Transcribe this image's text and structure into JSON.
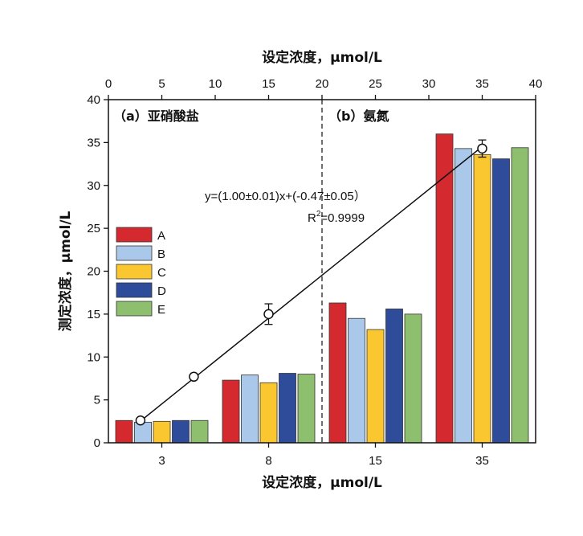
{
  "chart_data": {
    "type": "bar",
    "top_axis": {
      "label": "设定浓度，μmol/L",
      "range": [
        0,
        40
      ],
      "ticks": [
        "0",
        "5",
        "10",
        "15",
        "20",
        "25",
        "30",
        "35",
        "40"
      ]
    },
    "bottom_axis": {
      "label": "设定浓度，μmol/L",
      "categories": [
        "3",
        "8",
        "15",
        "35"
      ]
    },
    "y_axis": {
      "label": "测定浓度，μmol/L",
      "range": [
        0,
        40
      ],
      "ticks": [
        "0",
        "5",
        "10",
        "15",
        "20",
        "25",
        "30",
        "35",
        "40"
      ]
    },
    "panel_labels": {
      "left": "（a）亚硝酸盐",
      "right": "（b）氨氮"
    },
    "series": [
      {
        "name": "A",
        "color": "#d42a2f",
        "values": [
          2.6,
          7.3,
          16.3,
          36.0
        ]
      },
      {
        "name": "B",
        "color": "#a9c8ea",
        "values": [
          2.4,
          7.9,
          14.5,
          34.3
        ]
      },
      {
        "name": "C",
        "color": "#fbc731",
        "values": [
          2.5,
          7.0,
          13.2,
          33.6
        ]
      },
      {
        "name": "D",
        "color": "#2e4c9a",
        "values": [
          2.6,
          8.1,
          15.6,
          33.1
        ]
      },
      {
        "name": "E",
        "color": "#8dbf6e",
        "values": [
          2.6,
          8.0,
          15.0,
          34.4
        ]
      }
    ],
    "scatter": {
      "x": [
        3,
        8,
        15,
        35
      ],
      "y": [
        2.6,
        7.7,
        15.0,
        34.3
      ],
      "err": [
        0.2,
        0.2,
        1.2,
        1.0
      ]
    },
    "fit_line": {
      "equation": "y=(1.00±0.01)x+(-0.47±0.05）",
      "r2_prefix": "R",
      "r2_sup": "2",
      "r2_value": "=0.9999",
      "x_range": [
        3,
        35
      ]
    },
    "divider_x": 20
  }
}
